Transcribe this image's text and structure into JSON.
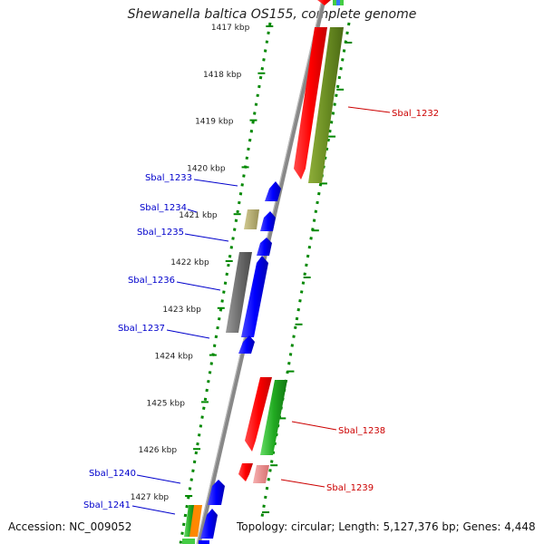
{
  "title": "Shewanella baltica OS155, complete genome",
  "footer": {
    "accession": "Accession: NC_009052",
    "summary": "Topology: circular; Length: 5,127,376 bp; Genes: 4,448"
  },
  "ruler": {
    "ticks": [
      {
        "label": "1417 kbp",
        "kbp": 1417
      },
      {
        "label": "1418 kbp",
        "kbp": 1418
      },
      {
        "label": "1419 kbp",
        "kbp": 1419
      },
      {
        "label": "1420 kbp",
        "kbp": 1420
      },
      {
        "label": "1421 kbp",
        "kbp": 1421
      },
      {
        "label": "1422 kbp",
        "kbp": 1422
      },
      {
        "label": "1423 kbp",
        "kbp": 1423
      },
      {
        "label": "1424 kbp",
        "kbp": 1424
      },
      {
        "label": "1425 kbp",
        "kbp": 1425
      },
      {
        "label": "1426 kbp",
        "kbp": 1426
      },
      {
        "label": "1427 kbp",
        "kbp": 1427
      }
    ]
  },
  "genes": [
    {
      "label": "Sbal_1232",
      "strand": "reverse",
      "color": "#cc0000"
    },
    {
      "label": "Sbal_1233",
      "strand": "forward",
      "color": "#0000cc"
    },
    {
      "label": "Sbal_1234",
      "strand": "forward",
      "color": "#0000cc"
    },
    {
      "label": "Sbal_1235",
      "strand": "forward",
      "color": "#0000cc"
    },
    {
      "label": "Sbal_1236",
      "strand": "forward",
      "color": "#0000cc"
    },
    {
      "label": "Sbal_1237",
      "strand": "forward",
      "color": "#0000cc"
    },
    {
      "label": "Sbal_1238",
      "strand": "reverse",
      "color": "#cc0000"
    },
    {
      "label": "Sbal_1239",
      "strand": "reverse",
      "color": "#cc0000"
    },
    {
      "label": "Sbal_1240",
      "strand": "forward",
      "color": "#0000cc"
    },
    {
      "label": "Sbal_1241",
      "strand": "forward",
      "color": "#0000cc"
    }
  ],
  "colors": {
    "forward_cds": "#0000ff",
    "reverse_cds": "#ff0000",
    "backbone": "#888888",
    "tick_dots": "#008800",
    "khaki_feature": "#b0a868",
    "gray_feature": "#777777",
    "olive_feature": "#6b8e23",
    "green_feature": "#22aa22",
    "pink_feature": "#e88888",
    "orange_feature": "#ff8800"
  }
}
